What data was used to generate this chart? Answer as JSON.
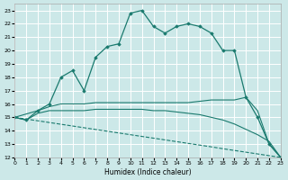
{
  "xlabel": "Humidex (Indice chaleur)",
  "bg_color": "#cce8e8",
  "grid_color": "#ffffff",
  "line_color": "#1a7a6e",
  "xlim": [
    0,
    23
  ],
  "ylim": [
    12,
    23.5
  ],
  "yticks": [
    12,
    13,
    14,
    15,
    16,
    17,
    18,
    19,
    20,
    21,
    22,
    23
  ],
  "xticks": [
    0,
    1,
    2,
    3,
    4,
    5,
    6,
    7,
    8,
    9,
    10,
    11,
    12,
    13,
    14,
    15,
    16,
    17,
    18,
    19,
    20,
    21,
    22,
    23
  ],
  "line1_x": [
    0,
    1,
    2,
    3,
    4,
    5,
    6,
    7,
    8,
    9,
    10,
    11,
    12,
    13,
    14,
    15,
    16,
    17,
    18,
    19,
    20,
    21,
    22,
    23
  ],
  "line1_y": [
    15.0,
    14.8,
    15.5,
    16.0,
    18.0,
    18.5,
    17.0,
    19.5,
    20.3,
    20.5,
    22.8,
    23.0,
    21.8,
    21.3,
    21.8,
    22.0,
    21.8,
    21.3,
    20.0,
    20.0,
    16.5,
    15.0,
    13.0,
    12.0
  ],
  "line2_x": [
    0,
    2,
    3,
    4,
    5,
    6,
    7,
    8,
    9,
    10,
    11,
    12,
    13,
    14,
    15,
    16,
    17,
    18,
    19,
    20,
    21,
    22,
    23
  ],
  "line2_y": [
    15.0,
    15.5,
    15.8,
    16.0,
    16.0,
    16.0,
    16.1,
    16.1,
    16.1,
    16.1,
    16.1,
    16.1,
    16.1,
    16.1,
    16.1,
    16.2,
    16.3,
    16.3,
    16.3,
    16.5,
    15.5,
    13.0,
    12.0
  ],
  "line3_x": [
    0,
    1,
    2,
    3,
    4,
    5,
    6,
    7,
    8,
    9,
    10,
    11,
    12,
    13,
    14,
    15,
    16,
    17,
    18,
    19,
    20,
    21,
    22,
    23
  ],
  "line3_y": [
    15.0,
    14.8,
    15.3,
    15.5,
    15.5,
    15.5,
    15.5,
    15.6,
    15.6,
    15.6,
    15.6,
    15.6,
    15.5,
    15.5,
    15.4,
    15.3,
    15.2,
    15.0,
    14.8,
    14.5,
    14.1,
    13.7,
    13.2,
    12.0
  ],
  "line4_x": [
    0,
    1,
    2,
    3,
    4,
    5,
    6,
    7,
    8,
    9,
    10,
    11,
    12,
    13,
    14,
    15,
    16,
    17,
    18,
    19,
    20,
    21,
    22,
    23
  ],
  "line4_y": [
    15.0,
    14.87,
    14.74,
    14.61,
    14.48,
    14.35,
    14.22,
    14.09,
    13.96,
    13.83,
    13.7,
    13.57,
    13.44,
    13.31,
    13.18,
    13.05,
    12.92,
    12.79,
    12.65,
    12.52,
    12.39,
    12.26,
    12.13,
    12.0
  ]
}
